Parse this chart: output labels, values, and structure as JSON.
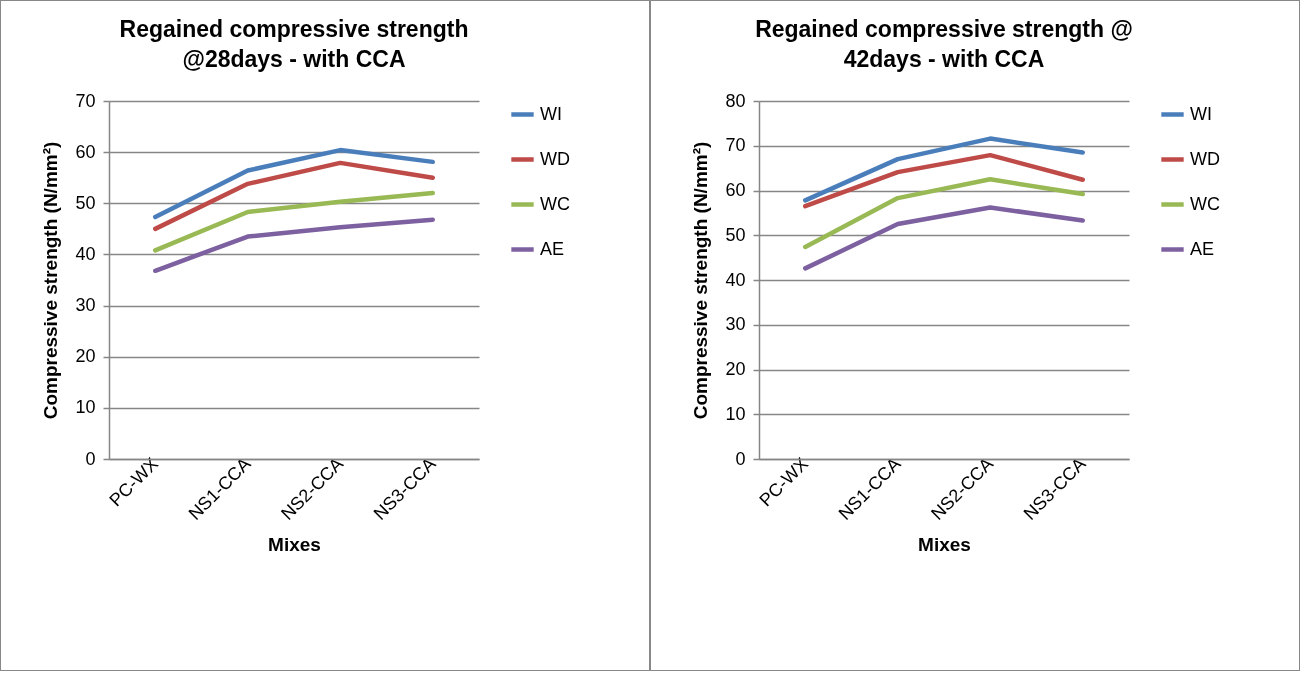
{
  "chart_data": [
    {
      "type": "line",
      "title": "Regained compressive strength\n@28days - with CCA",
      "xlabel": "Mixes",
      "ylabel": "Compressive strength (N/mm²)",
      "categories": [
        "PC-WX",
        "NS1-CCA",
        "NS2-CCA",
        "NS3-CCA"
      ],
      "series": [
        {
          "name": "WI",
          "color": "#4a7ebb",
          "values": [
            47.3,
            56.4,
            60.4,
            58.1
          ]
        },
        {
          "name": "WD",
          "color": "#be4b48",
          "values": [
            45,
            53.8,
            57.9,
            55
          ]
        },
        {
          "name": "WC",
          "color": "#98b954",
          "values": [
            40.8,
            48.3,
            50.3,
            52
          ]
        },
        {
          "name": "AE",
          "color": "#7d60a0",
          "values": [
            36.8,
            43.5,
            45.3,
            46.8
          ]
        }
      ],
      "ylim": [
        0,
        70
      ],
      "yticks": [
        0,
        10,
        20,
        30,
        40,
        50,
        60,
        70
      ],
      "grid": "y",
      "legend": "right",
      "marker": "none",
      "line_style": "solid"
    },
    {
      "type": "line",
      "title": "Regained compressive strength @\n42days - with CCA",
      "xlabel": "Mixes",
      "ylabel": "Compressive strength (N/mm²)",
      "categories": [
        "PC-WX",
        "NS1-CCA",
        "NS2-CCA",
        "NS3-CCA"
      ],
      "series": [
        {
          "name": "WI",
          "color": "#4a7ebb",
          "values": [
            57.8,
            67,
            71.6,
            68.5
          ]
        },
        {
          "name": "WD",
          "color": "#be4b48",
          "values": [
            56.5,
            64.1,
            67.9,
            62.4
          ]
        },
        {
          "name": "WC",
          "color": "#98b954",
          "values": [
            47.4,
            58.3,
            62.5,
            59.2
          ]
        },
        {
          "name": "AE",
          "color": "#7d60a0",
          "values": [
            42.6,
            52.5,
            56.2,
            53.3
          ]
        }
      ],
      "ylim": [
        0,
        80
      ],
      "yticks": [
        0,
        10,
        20,
        30,
        40,
        50,
        60,
        70,
        80
      ],
      "grid": "y",
      "legend": "right",
      "marker": "none",
      "line_style": "solid"
    }
  ]
}
